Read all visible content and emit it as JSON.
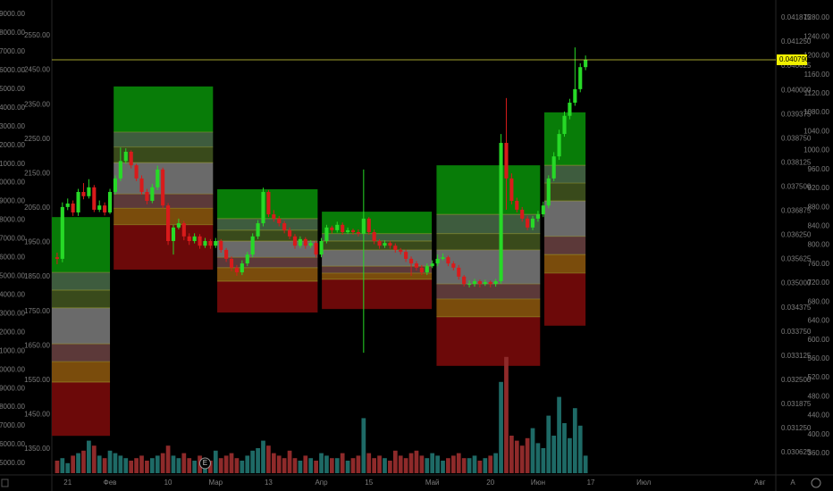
{
  "chart_data": {
    "type": "candlestick",
    "xlim": [
      -1,
      136
    ],
    "xticks": [
      {
        "value": 2,
        "label": "21"
      },
      {
        "value": 10,
        "label": "Фев"
      },
      {
        "value": 21,
        "label": "10"
      },
      {
        "value": 30,
        "label": "Мар"
      },
      {
        "value": 40,
        "label": "13"
      },
      {
        "value": 50,
        "label": "Апр"
      },
      {
        "value": 59,
        "label": "15"
      },
      {
        "value": 71,
        "label": "Май"
      },
      {
        "value": 82,
        "label": "20"
      },
      {
        "value": 91,
        "label": "Июн"
      },
      {
        "value": 101,
        "label": "17"
      },
      {
        "value": 111,
        "label": "Июл"
      },
      {
        "value": 133,
        "label": "Авг"
      }
    ],
    "ylim": [
      0.030094,
      0.042337
    ],
    "yticks": [
      0.041875,
      {
        "value": 0.04125,
        "label": "0.041250"
      },
      0.040625,
      {
        "value": 0.04,
        "label": "0.040000"
      },
      0.039375,
      {
        "value": 0.03875,
        "label": "0.038750"
      },
      0.038125,
      {
        "value": 0.0375,
        "label": "0.037500"
      },
      0.036875,
      {
        "value": 0.03625,
        "label": "0.036250"
      },
      0.035625,
      {
        "value": 0.035,
        "label": "0.035000"
      },
      0.034375,
      {
        "value": 0.03375,
        "label": "0.033750"
      },
      0.033125,
      {
        "value": 0.0325,
        "label": "0.032500"
      },
      0.031875,
      {
        "value": 0.03125,
        "label": "0.031250"
      },
      0.030625
    ],
    "y2lim": [
      318.5,
      1317.7
    ],
    "y2ticks": [
      {
        "value": 1280,
        "label": "1280.00"
      },
      {
        "value": 1240,
        "label": "1240.00"
      },
      {
        "value": 1200,
        "label": "1200.00"
      },
      {
        "value": 1160,
        "label": "1160.00"
      },
      {
        "value": 1120,
        "label": "1120.00"
      },
      {
        "value": 1080,
        "label": "1080.00"
      },
      {
        "value": 1040,
        "label": "1040.00"
      },
      {
        "value": 1000,
        "label": "1000.00"
      },
      {
        "value": 960,
        "label": "960.00"
      },
      {
        "value": 920,
        "label": "920.00"
      },
      {
        "value": 880,
        "label": "880.00"
      },
      {
        "value": 840,
        "label": "840.00"
      },
      {
        "value": 800,
        "label": "800.00"
      },
      {
        "value": 760,
        "label": "760.00"
      },
      {
        "value": 720,
        "label": "720.00"
      },
      {
        "value": 680,
        "label": "680.00"
      },
      {
        "value": 640,
        "label": "640.00"
      },
      {
        "value": 600,
        "label": "600.00"
      },
      {
        "value": 560,
        "label": "560.00"
      },
      {
        "value": 520,
        "label": "520.00"
      },
      {
        "value": 480,
        "label": "480.00"
      },
      {
        "value": 440,
        "label": "440.00"
      },
      {
        "value": 400,
        "label": "400.00"
      },
      {
        "value": 360,
        "label": "360.00"
      }
    ],
    "left_axes": [
      {
        "lim": [
          4475,
          29763
        ],
        "ticks": [
          {
            "value": 29000,
            "label": "29000.00"
          },
          {
            "value": 28000,
            "label": "28000.00"
          },
          {
            "value": 27000,
            "label": "27000.00"
          },
          {
            "value": 26000,
            "label": "26000.00"
          },
          {
            "value": 25000,
            "label": "25000.00"
          },
          {
            "value": 24000,
            "label": "24000.00"
          },
          {
            "value": 23000,
            "label": "23000.00"
          },
          {
            "value": 22000,
            "label": "22000.00"
          },
          {
            "value": 21000,
            "label": "21000.00"
          },
          {
            "value": 20000,
            "label": "20000.00"
          },
          {
            "value": 19000,
            "label": "19000.00"
          },
          {
            "value": 18000,
            "label": "18000.00"
          },
          {
            "value": 17000,
            "label": "17000.00"
          },
          {
            "value": 16000,
            "label": "16000.00"
          },
          {
            "value": 15000,
            "label": "15000.00"
          },
          {
            "value": 14000,
            "label": "14000.00"
          },
          {
            "value": 13000,
            "label": "13000.00"
          },
          {
            "value": 12000,
            "label": "12000.00"
          },
          {
            "value": 11000,
            "label": "11000.00"
          },
          {
            "value": 10000,
            "label": "10000.00"
          },
          {
            "value": 9000,
            "label": "9000.00"
          },
          {
            "value": 8000,
            "label": "8000.00"
          },
          {
            "value": 7000,
            "label": "7000.00"
          },
          {
            "value": 6000,
            "label": "6000.00"
          },
          {
            "value": 5000,
            "label": "5000.00"
          }
        ]
      },
      {
        "lim": [
          1280,
          2653.7
        ],
        "ticks": [
          {
            "value": 2550,
            "label": "2550.00"
          },
          {
            "value": 2450,
            "label": "2450.00"
          },
          {
            "value": 2350,
            "label": "2350.00"
          },
          {
            "value": 2250,
            "label": "2250.00"
          },
          {
            "value": 2150,
            "label": "2150.00"
          },
          {
            "value": 2050,
            "label": "2050.00"
          },
          {
            "value": 1950,
            "label": "1950.00"
          },
          {
            "value": 1850,
            "label": "1850.00"
          },
          {
            "value": 1750,
            "label": "1750.00"
          },
          {
            "value": 1650,
            "label": "1650.00"
          },
          {
            "value": 1550,
            "label": "1550.00"
          },
          {
            "value": 1450,
            "label": "1450.00"
          },
          {
            "value": 1350,
            "label": "1350.00"
          }
        ]
      }
    ],
    "up_color": "#27d927",
    "down_color": "#d81b1b",
    "candles": [
      [
        0.03568,
        0.0358,
        0.0355,
        0.03564
      ],
      [
        0.03564,
        0.0371,
        0.03555,
        0.03698
      ],
      [
        0.03698,
        0.0372,
        0.0369,
        0.03707
      ],
      [
        0.03707,
        0.03715,
        0.03675,
        0.03684
      ],
      [
        0.03684,
        0.03745,
        0.03675,
        0.03737
      ],
      [
        0.03737,
        0.0376,
        0.03718,
        0.03726
      ],
      [
        0.03726,
        0.0377,
        0.0372,
        0.03749
      ],
      [
        0.03749,
        0.03755,
        0.03685,
        0.03691
      ],
      [
        0.03691,
        0.03715,
        0.03685,
        0.03702
      ],
      [
        0.03702,
        0.0371,
        0.03676,
        0.03684
      ],
      [
        0.03684,
        0.03745,
        0.0368,
        0.03737
      ],
      [
        0.03737,
        0.0378,
        0.0373,
        0.03772
      ],
      [
        0.03772,
        0.03852,
        0.03765,
        0.03817
      ],
      [
        0.03817,
        0.0385,
        0.0381,
        0.03841
      ],
      [
        0.03841,
        0.03845,
        0.03798,
        0.03806
      ],
      [
        0.03806,
        0.0381,
        0.03765,
        0.03772
      ],
      [
        0.03772,
        0.0378,
        0.0373,
        0.03737
      ],
      [
        0.03737,
        0.03745,
        0.03705,
        0.03714
      ],
      [
        0.03714,
        0.03758,
        0.03708,
        0.03749
      ],
      [
        0.03749,
        0.03805,
        0.03742,
        0.03795
      ],
      [
        0.03795,
        0.038,
        0.03695,
        0.03702
      ],
      [
        0.03702,
        0.03708,
        0.036,
        0.0361
      ],
      [
        0.0361,
        0.03652,
        0.03575,
        0.03645
      ],
      [
        0.03645,
        0.03668,
        0.0364,
        0.03656
      ],
      [
        0.03656,
        0.03662,
        0.03612,
        0.03622
      ],
      [
        0.03622,
        0.0363,
        0.036,
        0.0361
      ],
      [
        0.0361,
        0.0363,
        0.03604,
        0.03622
      ],
      [
        0.03622,
        0.03628,
        0.0359,
        0.03598
      ],
      [
        0.03598,
        0.03618,
        0.03592,
        0.0361
      ],
      [
        0.0361,
        0.03615,
        0.0359,
        0.03598
      ],
      [
        0.03598,
        0.03618,
        0.03592,
        0.0361
      ],
      [
        0.0361,
        0.03615,
        0.0358,
        0.03587
      ],
      [
        0.03587,
        0.03592,
        0.03556,
        0.03564
      ],
      [
        0.03564,
        0.0357,
        0.03532,
        0.03541
      ],
      [
        0.03541,
        0.03548,
        0.0352,
        0.03529
      ],
      [
        0.03529,
        0.0356,
        0.03522,
        0.03552
      ],
      [
        0.03552,
        0.03582,
        0.03545,
        0.03575
      ],
      [
        0.03575,
        0.0363,
        0.03568,
        0.03622
      ],
      [
        0.03622,
        0.03664,
        0.03615,
        0.03656
      ],
      [
        0.03656,
        0.03748,
        0.03648,
        0.03737
      ],
      [
        0.03737,
        0.03742,
        0.03672,
        0.03679
      ],
      [
        0.03679,
        0.0369,
        0.0366,
        0.03668
      ],
      [
        0.03668,
        0.03675,
        0.03648,
        0.03656
      ],
      [
        0.03656,
        0.03662,
        0.0363,
        0.03638
      ],
      [
        0.03638,
        0.03645,
        0.03615,
        0.03622
      ],
      [
        0.03622,
        0.03628,
        0.0359,
        0.03598
      ],
      [
        0.03598,
        0.03622,
        0.03592,
        0.03615
      ],
      [
        0.03615,
        0.0362,
        0.0359,
        0.03598
      ],
      [
        0.03598,
        0.03612,
        0.03592,
        0.03605
      ],
      [
        0.03605,
        0.0361,
        0.03568,
        0.03575
      ],
      [
        0.03575,
        0.03618,
        0.03568,
        0.0361
      ],
      [
        0.0361,
        0.03652,
        0.03604,
        0.03645
      ],
      [
        0.03645,
        0.0365,
        0.0363,
        0.03638
      ],
      [
        0.03638,
        0.0366,
        0.03632,
        0.03652
      ],
      [
        0.03652,
        0.03658,
        0.03626,
        0.03633
      ],
      [
        0.03633,
        0.03645,
        0.03628,
        0.03638
      ],
      [
        0.03638,
        0.03642,
        0.03626,
        0.03633
      ],
      [
        0.03633,
        0.0364,
        0.03622,
        0.03629
      ],
      [
        0.03629,
        0.03795,
        0.03321,
        0.03668
      ],
      [
        0.03668,
        0.03672,
        0.03626,
        0.03633
      ],
      [
        0.03633,
        0.0364,
        0.03602,
        0.0361
      ],
      [
        0.0361,
        0.03615,
        0.0359,
        0.03598
      ],
      [
        0.03598,
        0.03612,
        0.03592,
        0.03605
      ],
      [
        0.03605,
        0.0361,
        0.0359,
        0.03598
      ],
      [
        0.03598,
        0.03604,
        0.0358,
        0.03587
      ],
      [
        0.03587,
        0.03592,
        0.03575,
        0.03582
      ],
      [
        0.03582,
        0.03588,
        0.03556,
        0.03564
      ],
      [
        0.03564,
        0.0357,
        0.0352,
        0.03552
      ],
      [
        0.03552,
        0.03558,
        0.03534,
        0.03541
      ],
      [
        0.03541,
        0.03548,
        0.03522,
        0.03529
      ],
      [
        0.03529,
        0.03552,
        0.03522,
        0.03545
      ],
      [
        0.03545,
        0.0356,
        0.0354,
        0.03552
      ],
      [
        0.03552,
        0.03575,
        0.03545,
        0.03564
      ],
      [
        0.03564,
        0.03578,
        0.0356,
        0.03568
      ],
      [
        0.03568,
        0.03572,
        0.03545,
        0.03552
      ],
      [
        0.03552,
        0.03558,
        0.03534,
        0.03541
      ],
      [
        0.03541,
        0.03548,
        0.0351,
        0.03518
      ],
      [
        0.03518,
        0.03522,
        0.03492,
        0.03499
      ],
      [
        0.03499,
        0.03508,
        0.0349,
        0.03499
      ],
      [
        0.03499,
        0.03512,
        0.03492,
        0.03506
      ],
      [
        0.03506,
        0.0351,
        0.0349,
        0.03499
      ],
      [
        0.03499,
        0.0351,
        0.03494,
        0.03504
      ],
      [
        0.03504,
        0.03508,
        0.0349,
        0.03499
      ],
      [
        0.03499,
        0.03512,
        0.03492,
        0.03506
      ],
      [
        0.03506,
        0.03887,
        0.035,
        0.03864
      ],
      [
        0.03864,
        0.0398,
        0.03691,
        0.03772
      ],
      [
        0.03772,
        0.03785,
        0.03705,
        0.03714
      ],
      [
        0.03714,
        0.03722,
        0.03684,
        0.03691
      ],
      [
        0.03691,
        0.03698,
        0.0366,
        0.03668
      ],
      [
        0.03668,
        0.03675,
        0.03638,
        0.03645
      ],
      [
        0.03645,
        0.03675,
        0.03638,
        0.03668
      ],
      [
        0.03668,
        0.03688,
        0.0366,
        0.03679
      ],
      [
        0.03679,
        0.03712,
        0.03672,
        0.03702
      ],
      [
        0.03702,
        0.0378,
        0.03695,
        0.03772
      ],
      [
        0.03772,
        0.0384,
        0.03765,
        0.03829
      ],
      [
        0.03829,
        0.03898,
        0.0382,
        0.03887
      ],
      [
        0.03887,
        0.03945,
        0.0388,
        0.03934
      ],
      [
        0.03934,
        0.03978,
        0.03925,
        0.03968
      ],
      [
        0.03968,
        0.04111,
        0.0396,
        0.04003
      ],
      [
        0.04003,
        0.0407,
        0.03995,
        0.0406
      ],
      [
        0.0406,
        0.0409,
        0.04052,
        0.04079
      ]
    ],
    "volume": [
      10,
      12,
      8,
      14,
      16,
      18,
      26,
      22,
      14,
      12,
      18,
      16,
      14,
      12,
      10,
      12,
      14,
      10,
      12,
      14,
      16,
      22,
      14,
      12,
      16,
      12,
      10,
      14,
      12,
      10,
      18,
      12,
      14,
      16,
      12,
      10,
      14,
      18,
      20,
      26,
      22,
      16,
      14,
      12,
      18,
      12,
      10,
      14,
      12,
      10,
      16,
      14,
      12,
      12,
      16,
      10,
      12,
      14,
      44,
      16,
      12,
      14,
      12,
      10,
      18,
      14,
      12,
      16,
      18,
      14,
      12,
      16,
      14,
      10,
      12,
      14,
      16,
      12,
      12,
      14,
      10,
      12,
      14,
      16,
      73,
      93,
      30,
      26,
      22,
      28,
      36,
      24,
      20,
      46,
      30,
      61,
      40,
      28,
      52,
      38,
      14
    ],
    "vlim": [
      0,
      100
    ],
    "volume_up_color": "#1e6a66",
    "volume_down_color": "#8e2a2a",
    "zone_colors": [
      "#087c08",
      "#3e5c3e",
      "#394a1b",
      "#6a6a6a",
      "#5c3939",
      "#7a4c0c",
      "#6c0909"
    ],
    "zones": [
      {
        "x": [
          -1,
          10
        ],
        "levels": [
          0.03672,
          0.03529,
          0.03483,
          0.03437,
          0.03344,
          0.03298,
          0.03245,
          0.03106
        ]
      },
      {
        "x": [
          10.7,
          29.5
        ],
        "levels": [
          0.0401,
          0.03892,
          0.03853,
          0.03813,
          0.03732,
          0.03695,
          0.03652,
          0.03536
        ]
      },
      {
        "x": [
          30.3,
          49.3
        ],
        "levels": [
          0.03744,
          0.03668,
          0.03638,
          0.0361,
          0.03568,
          0.03541,
          0.03506,
          0.03425
        ]
      },
      {
        "x": [
          50.1,
          70.9
        ],
        "levels": [
          0.03686,
          0.03629,
          0.0361,
          0.03587,
          0.03545,
          0.03527,
          0.03511,
          0.03434
        ]
      },
      {
        "x": [
          71.8,
          91.4
        ],
        "levels": [
          0.03806,
          0.03679,
          0.03629,
          0.03587,
          0.03499,
          0.0346,
          0.03414,
          0.03287
        ]
      },
      {
        "x": [
          92.2,
          100
        ],
        "levels": [
          0.03943,
          0.03806,
          0.0376,
          0.03714,
          0.03622,
          0.03575,
          0.03527,
          0.03391
        ]
      }
    ],
    "price_line": {
      "value": 0.04079,
      "label": "0.040790",
      "color": "#d6d63a"
    },
    "events": [
      {
        "x": 28,
        "label": "E"
      }
    ],
    "buttons": [
      "A"
    ]
  }
}
